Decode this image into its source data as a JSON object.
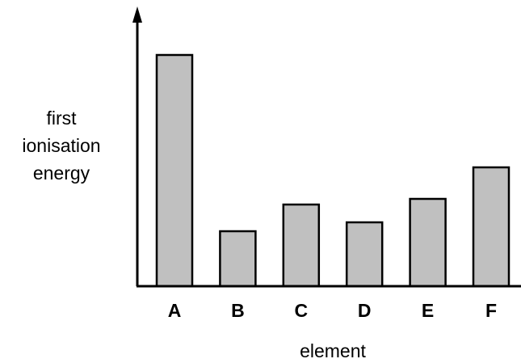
{
  "chart_data": {
    "type": "bar",
    "categories": [
      "A",
      "B",
      "C",
      "D",
      "E",
      "F"
    ],
    "values": [
      286,
      68,
      101,
      79,
      108,
      147
    ],
    "ylabel": [
      "first",
      "ionisation",
      "energy"
    ],
    "xlabel": "element",
    "ylim": [
      0,
      300
    ],
    "grid": false,
    "bar_color": "#c0c0c0",
    "edge_color": "#000000"
  }
}
